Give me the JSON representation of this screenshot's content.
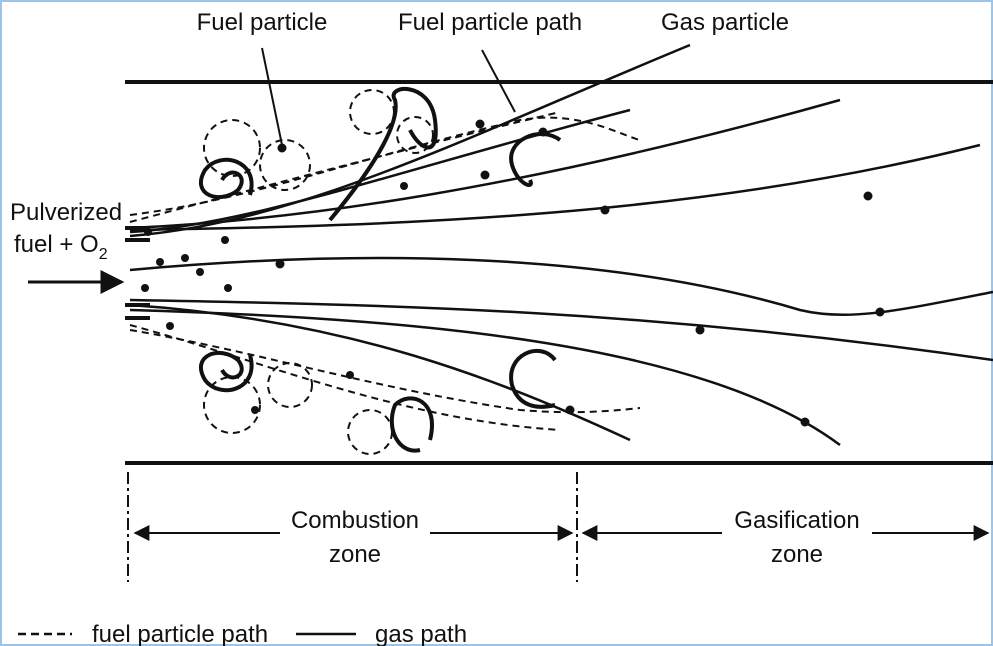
{
  "labels": {
    "fuel_particle": "Fuel particle",
    "fuel_particle_path": "Fuel particle path",
    "gas_particle": "Gas particle"
  },
  "inlet": {
    "line1": "Pulverized",
    "line2": "fuel + O",
    "subscript": "2"
  },
  "zones": [
    {
      "line1": "Combustion",
      "line2": "zone"
    },
    {
      "line1": "Gasification",
      "line2": "zone"
    }
  ],
  "legend": [
    "fuel particle path",
    "gas path"
  ]
}
